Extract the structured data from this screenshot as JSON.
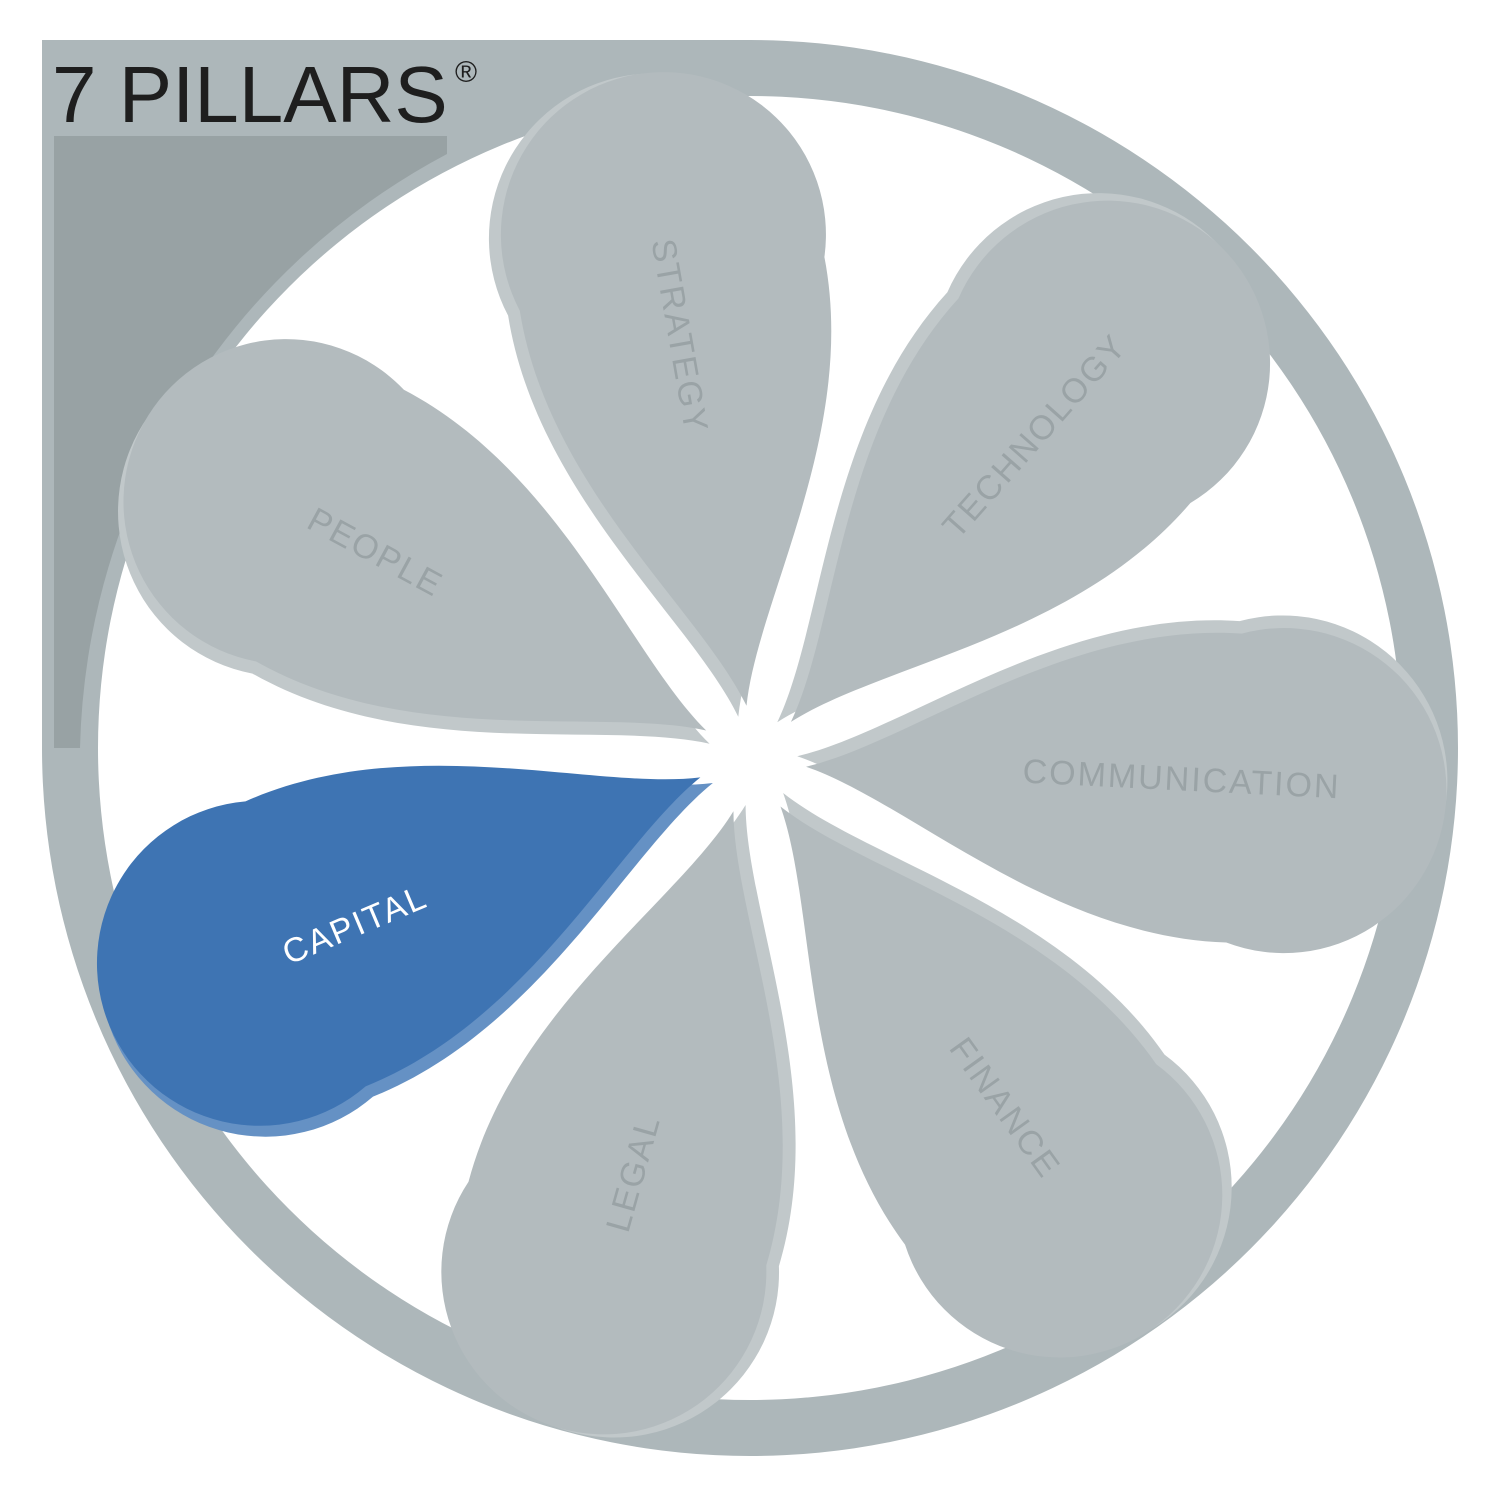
{
  "title": {
    "text": "7 PILLARS",
    "mark": "®"
  },
  "colors": {
    "ring": "#adb7ba",
    "corner_panel": "#98a2a4",
    "petal_fill": "#b3bbbe",
    "petal_edge": "#c1c8ca",
    "petal_text": "#9aa3a6",
    "active_fill": "#3e74b3",
    "active_edge": "#6591c4",
    "active_text": "#ffffff"
  },
  "pillars": [
    {
      "label": "STRATEGY",
      "active": false
    },
    {
      "label": "TECHNOLOGY",
      "active": false
    },
    {
      "label": "COMMUNICATION",
      "active": false
    },
    {
      "label": "FINANCE",
      "active": false
    },
    {
      "label": "LEGAL",
      "active": false
    },
    {
      "label": "CAPITAL",
      "active": true
    },
    {
      "label": "PEOPLE",
      "active": false
    }
  ]
}
